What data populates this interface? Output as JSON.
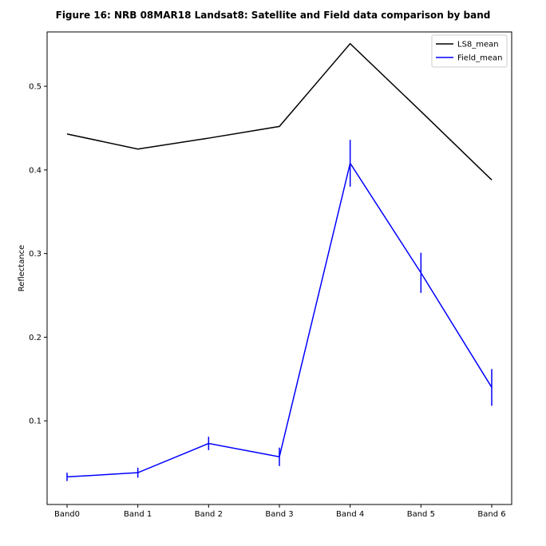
{
  "chart_data": {
    "type": "line",
    "title": "Figure 16: NRB 08MAR18  Landsat8: Satellite and Field data comparison by band",
    "xlabel": "",
    "ylabel": "Reflectance",
    "categories": [
      "Band0",
      "Band 1",
      "Band 2",
      "Band 3",
      "Band 4",
      "Band 5",
      "Band 6"
    ],
    "ylim": [
      0.0,
      0.565
    ],
    "yticks": [
      0.1,
      0.2,
      0.3,
      0.4,
      0.5
    ],
    "grid": false,
    "legend_position": "top-right",
    "series": [
      {
        "name": "LS8_mean",
        "color": "#000000",
        "values": [
          0.443,
          0.425,
          0.438,
          0.452,
          0.551,
          0.47,
          0.388
        ],
        "errors": null
      },
      {
        "name": "Field_mean",
        "color": "#0000ff",
        "values": [
          0.033,
          0.038,
          0.073,
          0.057,
          0.408,
          0.277,
          0.14
        ],
        "errors": [
          0.005,
          0.006,
          0.008,
          0.011,
          0.028,
          0.024,
          0.022
        ]
      }
    ]
  }
}
